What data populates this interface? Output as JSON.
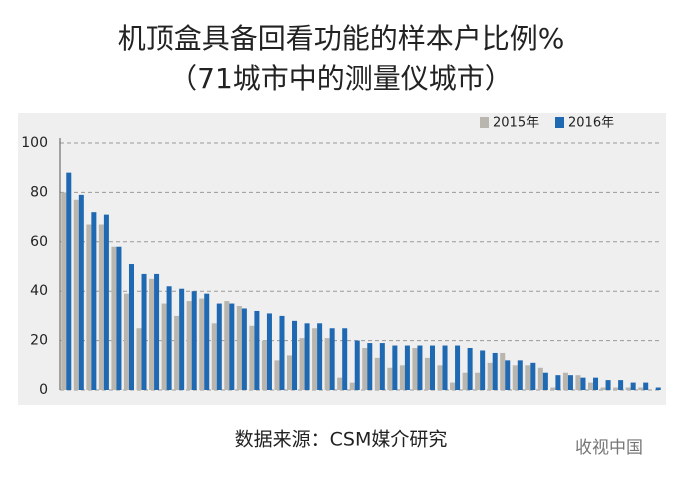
{
  "chart_data": {
    "type": "bar",
    "title": "机顶盒具备回看功能的样本户比例%",
    "subtitle": "（71城市中的测量仪城市）",
    "source": "数据来源：CSM媒介研究",
    "watermark": "收视中国",
    "categories": [
      null,
      null,
      null,
      null,
      null,
      null,
      null,
      null,
      null,
      null,
      null,
      null,
      null,
      null,
      null,
      null,
      null,
      null,
      null,
      null,
      null,
      null,
      null,
      null,
      null,
      null,
      null,
      null,
      null,
      null,
      null,
      null,
      null,
      null,
      null,
      null,
      null,
      null,
      null,
      null,
      null,
      null,
      null,
      null,
      null,
      null,
      null,
      null
    ],
    "series": [
      {
        "name": "2015年",
        "color": "#b8b6ae",
        "values": [
          80,
          77,
          67,
          67,
          58,
          39,
          25,
          45,
          35,
          30,
          36,
          37,
          27,
          36,
          34,
          26,
          20,
          12,
          14,
          21,
          25,
          21,
          5,
          3,
          17,
          13,
          9,
          10,
          17,
          13,
          10,
          3,
          7,
          7,
          11,
          15,
          10,
          10,
          9,
          1,
          7,
          6,
          3,
          1,
          1,
          1,
          1,
          0
        ]
      },
      {
        "name": "2016年",
        "color": "#1f69b3",
        "values": [
          88,
          79,
          72,
          71,
          58,
          51,
          47,
          47,
          42,
          41,
          40,
          39,
          35,
          35,
          33,
          32,
          31,
          30,
          28,
          27,
          27,
          25,
          25,
          20,
          19,
          19,
          18,
          18,
          18,
          18,
          18,
          18,
          17,
          16,
          15,
          12,
          12,
          11,
          7,
          6,
          6,
          5,
          5,
          4,
          4,
          3,
          3,
          1
        ]
      }
    ],
    "ylim": [
      0,
      100
    ],
    "yticks": [
      0,
      20,
      40,
      60,
      80,
      100
    ],
    "grid": true,
    "legend": "top-right"
  }
}
